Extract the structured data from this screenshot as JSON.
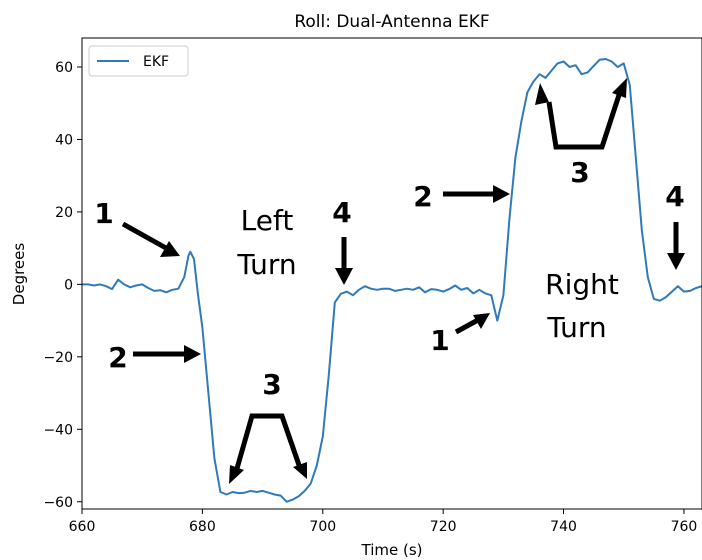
{
  "chart_data": {
    "type": "line",
    "title": "Roll: Dual-Antenna EKF",
    "xlabel": "Time (s)",
    "ylabel": "Degrees",
    "xlim": [
      660,
      763
    ],
    "ylim": [
      -62,
      68
    ],
    "xticks": [
      660,
      680,
      700,
      720,
      740,
      760
    ],
    "yticks": [
      -60,
      -40,
      -20,
      0,
      20,
      40,
      60
    ],
    "ytick_labels": [
      "−60",
      "−40",
      "−20",
      "0",
      "20",
      "40",
      "60"
    ],
    "legend": {
      "position": "top-left",
      "entries": [
        "EKF"
      ]
    },
    "series": [
      {
        "name": "EKF",
        "color": "#2f7ab9",
        "points": [
          [
            660,
            0
          ],
          [
            661,
            0
          ],
          [
            662,
            -0.3
          ],
          [
            663,
            0
          ],
          [
            664,
            -0.5
          ],
          [
            665,
            -1.3
          ],
          [
            666,
            1.3
          ],
          [
            667,
            0
          ],
          [
            668,
            -0.8
          ],
          [
            669,
            -0.3
          ],
          [
            670,
            0
          ],
          [
            671,
            -1
          ],
          [
            672,
            -1.8
          ],
          [
            673,
            -1.6
          ],
          [
            674,
            -2.2
          ],
          [
            675,
            -1.5
          ],
          [
            676,
            -1.2
          ],
          [
            677,
            2
          ],
          [
            677.7,
            8
          ],
          [
            678,
            9
          ],
          [
            678.6,
            7
          ],
          [
            679.2,
            -2
          ],
          [
            680,
            -12
          ],
          [
            681,
            -30
          ],
          [
            682,
            -48
          ],
          [
            683,
            -57.3
          ],
          [
            684,
            -58
          ],
          [
            685,
            -57.3
          ],
          [
            686,
            -57.6
          ],
          [
            687,
            -57.5
          ],
          [
            688,
            -57
          ],
          [
            689,
            -57.3
          ],
          [
            690,
            -57
          ],
          [
            691,
            -57.5
          ],
          [
            692,
            -58
          ],
          [
            693,
            -58.3
          ],
          [
            694,
            -60
          ],
          [
            695,
            -59.4
          ],
          [
            696,
            -58.5
          ],
          [
            697,
            -57
          ],
          [
            698,
            -55
          ],
          [
            699,
            -50
          ],
          [
            700,
            -42
          ],
          [
            701,
            -25
          ],
          [
            702,
            -5
          ],
          [
            703,
            -2.6
          ],
          [
            704,
            -2
          ],
          [
            705,
            -3
          ],
          [
            706,
            -1.5
          ],
          [
            707,
            -0.5
          ],
          [
            708,
            -1.2
          ],
          [
            709,
            -1.5
          ],
          [
            710,
            -1.2
          ],
          [
            711,
            -1.2
          ],
          [
            712,
            -1.8
          ],
          [
            713,
            -1.5
          ],
          [
            714,
            -1.2
          ],
          [
            715,
            -1.5
          ],
          [
            716,
            -0.8
          ],
          [
            717,
            -2.2
          ],
          [
            718,
            -1.3
          ],
          [
            719,
            -1.5
          ],
          [
            720,
            -2
          ],
          [
            721,
            -1.3
          ],
          [
            722,
            -0.3
          ],
          [
            723,
            -1.5
          ],
          [
            724,
            -1
          ],
          [
            725,
            -2.5
          ],
          [
            726,
            -1.5
          ],
          [
            727,
            -2.5
          ],
          [
            728,
            -3
          ],
          [
            729,
            -10
          ],
          [
            730,
            -3
          ],
          [
            731,
            18
          ],
          [
            732,
            35
          ],
          [
            733,
            45
          ],
          [
            734,
            53
          ],
          [
            735,
            56
          ],
          [
            736,
            58
          ],
          [
            737,
            57
          ],
          [
            738,
            59
          ],
          [
            739,
            61
          ],
          [
            740,
            61.5
          ],
          [
            741,
            60
          ],
          [
            742,
            60.5
          ],
          [
            743,
            58
          ],
          [
            744,
            58.5
          ],
          [
            745,
            60.3
          ],
          [
            746,
            62
          ],
          [
            747,
            62.2
          ],
          [
            748,
            61.5
          ],
          [
            749,
            60
          ],
          [
            750,
            61
          ],
          [
            751,
            55
          ],
          [
            752,
            35
          ],
          [
            753,
            15
          ],
          [
            754,
            2
          ],
          [
            755,
            -4
          ],
          [
            756,
            -4.5
          ],
          [
            757,
            -3.5
          ],
          [
            758,
            -2
          ],
          [
            759,
            -0.5
          ],
          [
            760,
            -2
          ],
          [
            761,
            -1.8
          ],
          [
            762,
            -1
          ],
          [
            763,
            -0.5
          ]
        ]
      }
    ],
    "annotations": {
      "left_turn": [
        "Left",
        "Turn"
      ],
      "right_turn": [
        "Right",
        "Turn"
      ],
      "markers": [
        {
          "text": "1"
        },
        {
          "text": "2"
        },
        {
          "text": "3"
        },
        {
          "text": "4"
        },
        {
          "text": "1"
        },
        {
          "text": "2"
        },
        {
          "text": "3"
        },
        {
          "text": "4"
        }
      ]
    }
  }
}
